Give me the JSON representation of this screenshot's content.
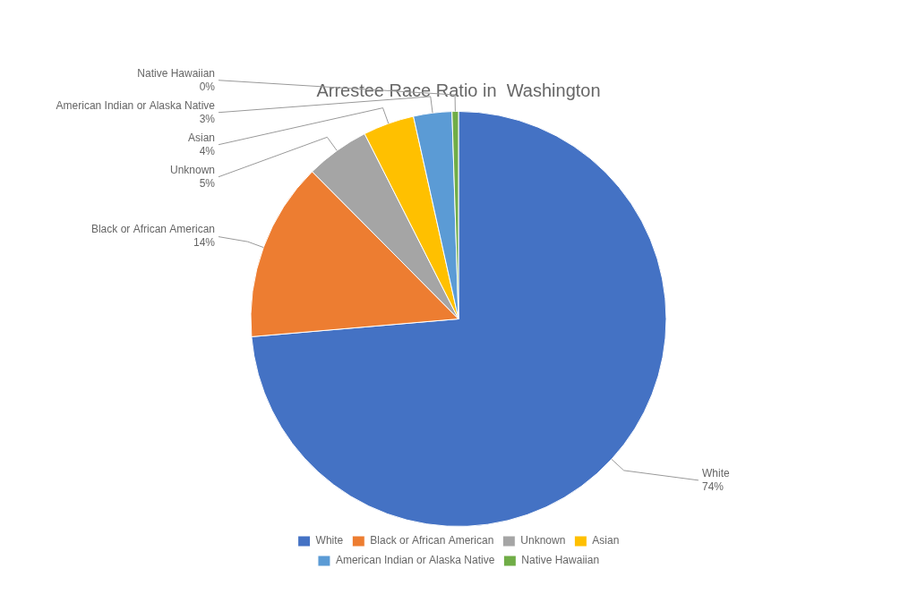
{
  "chart_data": {
    "type": "pie",
    "title": "Arrestee Race Ratio in  Washington",
    "categories": [
      "White",
      "Black or African American",
      "Unknown",
      "Asian",
      "American Indian or Alaska Native",
      "Native Hawaiian"
    ],
    "values": [
      74,
      14,
      5,
      4,
      3,
      0.5
    ],
    "value_labels": [
      "74%",
      "14%",
      "5%",
      "4%",
      "3%",
      "0%"
    ],
    "colors": [
      "#4472C4",
      "#ED7D31",
      "#A5A5A5",
      "#FFC000",
      "#5B9BD5",
      "#70AD47"
    ],
    "data_labels": true,
    "legend": "bottom"
  }
}
